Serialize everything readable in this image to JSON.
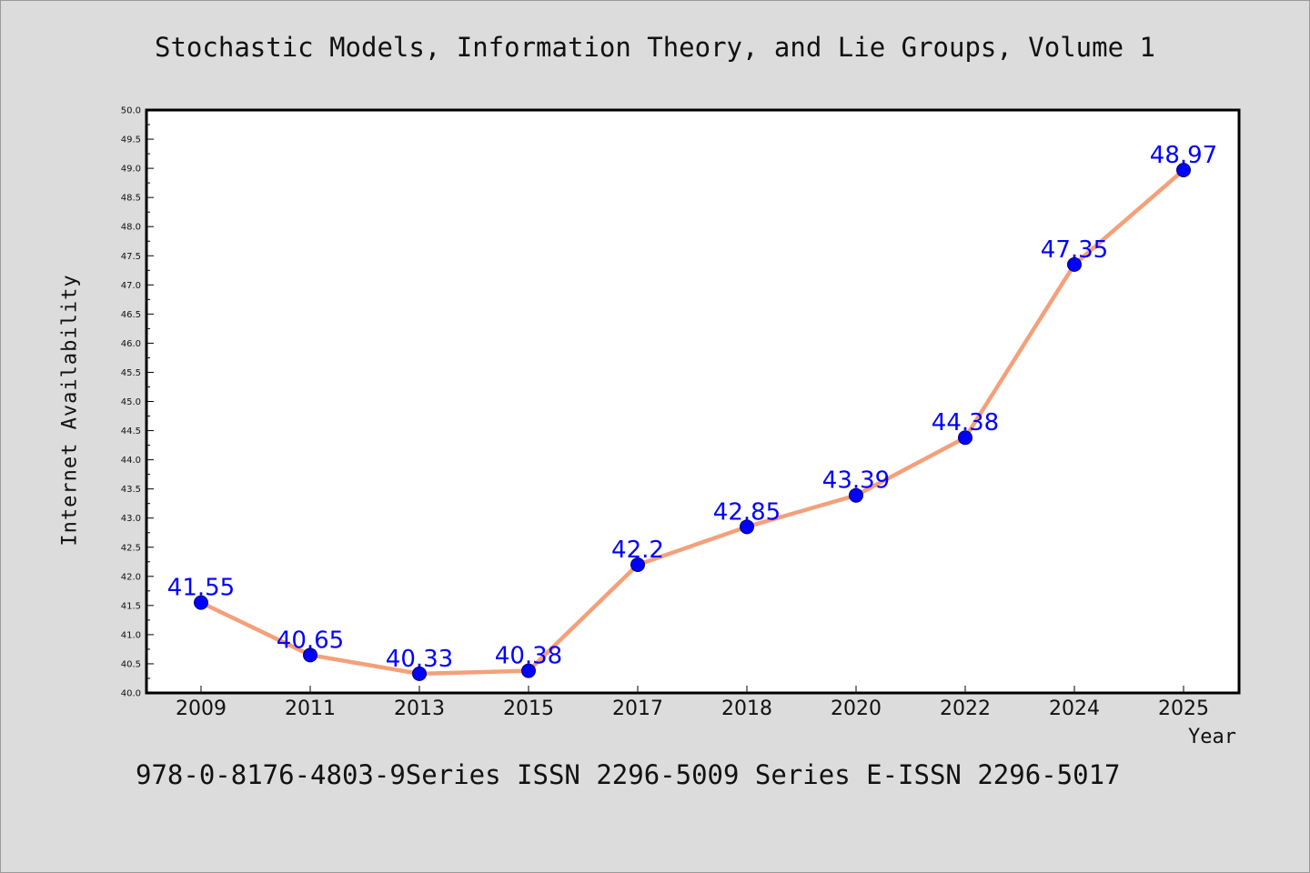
{
  "header": {
    "title": "Stochastic Models, Information Theory, and Lie Groups, Volume 1"
  },
  "footer": {
    "text": "978-0-8176-4803-9Series ISSN 2296-5009 Series E-ISSN 2296-5017"
  },
  "colors": {
    "background": "#dcdcdc",
    "plot_background": "#ffffff",
    "line": "#f4a07a",
    "marker": "#0000ff",
    "data_label": "#0000ff",
    "axis": "#000000"
  },
  "chart_data": {
    "type": "line",
    "title": "Stochastic Models, Information Theory, and Lie Groups, Volume 1",
    "xlabel": "Year",
    "ylabel": "Internet Availability",
    "categories": [
      "2009",
      "2011",
      "2013",
      "2015",
      "2017",
      "2018",
      "2020",
      "2022",
      "2024",
      "2025"
    ],
    "values": [
      41.55,
      40.65,
      40.33,
      40.38,
      42.2,
      42.85,
      43.39,
      44.38,
      47.35,
      48.97
    ],
    "data_labels": [
      "41.55",
      "40.65",
      "40.33",
      "40.38",
      "42.2",
      "42.85",
      "43.39",
      "44.38",
      "47.35",
      "48.97"
    ],
    "ylim": [
      40.0,
      50.0
    ],
    "yticks": [
      "40.0",
      "40.5",
      "41.0",
      "41.5",
      "42.0",
      "42.5",
      "43.0",
      "43.5",
      "44.0",
      "44.5",
      "45.0",
      "45.5",
      "46.0",
      "46.5",
      "47.0",
      "47.5",
      "48.0",
      "48.5",
      "49.0",
      "49.5",
      "50.0"
    ],
    "grid": false,
    "legend": "none"
  }
}
